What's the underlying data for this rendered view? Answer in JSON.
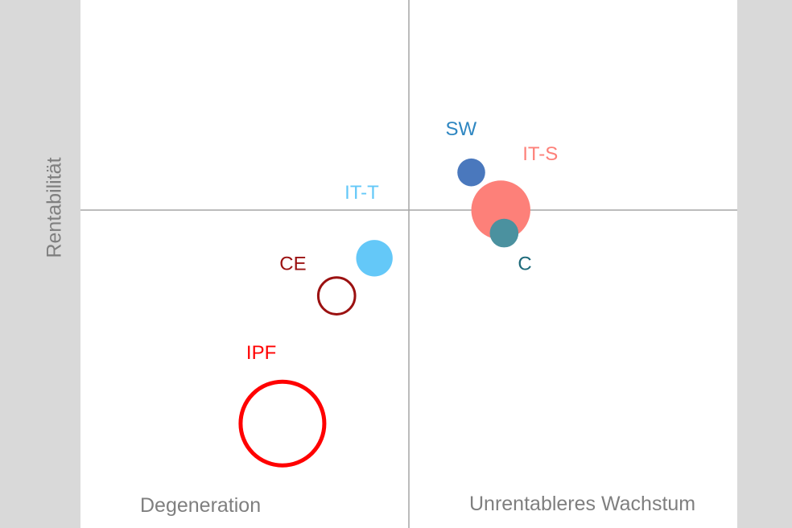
{
  "chart_data": {
    "type": "scatter",
    "subtype": "bubble",
    "ylabel": "Rentabilität",
    "xlabel": "",
    "grid": false,
    "legend": "none",
    "xlim": [
      -1,
      1
    ],
    "ylim": [
      -1,
      1
    ],
    "quadrant_divider": {
      "x": 0,
      "y": 0
    },
    "quadrant_labels": {
      "bottom_left": "Degeneration",
      "bottom_right": "Unrentableres Wachstum"
    },
    "series": [
      {
        "name": "IPF",
        "x": -0.385,
        "y": -0.51,
        "size": 1.0,
        "color": "#ff0000",
        "filled": false
      },
      {
        "name": "CE",
        "x": -0.22,
        "y": -0.205,
        "size": 0.46,
        "color": "#9b1111",
        "filled": false
      },
      {
        "name": "IT-T",
        "x": -0.105,
        "y": -0.115,
        "size": 0.42,
        "color": "#64c8f8",
        "filled": true
      },
      {
        "name": "SW",
        "x": 0.19,
        "y": 0.09,
        "size": 0.32,
        "color": "#4a78bd",
        "filled": true
      },
      {
        "name": "IT-S",
        "x": 0.28,
        "y": 0.0,
        "size": 0.68,
        "color": "#fd8079",
        "filled": true
      },
      {
        "name": "C",
        "x": 0.29,
        "y": -0.055,
        "size": 0.33,
        "color": "#4b919f",
        "filled": true
      }
    ],
    "label_colors": {
      "IPF": "#ff0000",
      "CE": "#9b1111",
      "IT-T": "#64c8f8",
      "SW": "#2e86c1",
      "IT-S": "#fd8079",
      "C": "#1e6a7a"
    }
  }
}
